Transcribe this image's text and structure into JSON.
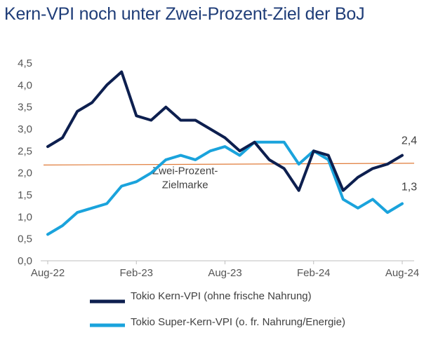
{
  "title": "Kern-VPI noch unter Zwei-Prozent-Ziel der BoJ",
  "chart_data": {
    "type": "line",
    "title": "Kern-VPI noch unter Zwei-Prozent-Ziel der BoJ",
    "x": [
      "2022-08",
      "2022-09",
      "2022-10",
      "2022-11",
      "2022-12",
      "2023-01",
      "2023-02",
      "2023-03",
      "2023-04",
      "2023-05",
      "2023-06",
      "2023-07",
      "2023-08",
      "2023-09",
      "2023-10",
      "2023-11",
      "2023-12",
      "2024-01",
      "2024-02",
      "2024-03",
      "2024-04",
      "2024-05",
      "2024-06",
      "2024-07",
      "2024-08"
    ],
    "x_tick_labels": [
      "Aug-22",
      "Feb-23",
      "Aug-23",
      "Feb-24",
      "Aug-24"
    ],
    "x_tick_positions": [
      "2022-08",
      "2023-02",
      "2023-08",
      "2024-02",
      "2024-08"
    ],
    "ylim": [
      0,
      4.5
    ],
    "y_ticks": [
      "0,0",
      "0,5",
      "1,0",
      "1,5",
      "2,0",
      "2,5",
      "3,0",
      "3,5",
      "4,0",
      "4,5"
    ],
    "y_tick_values": [
      0,
      0.5,
      1.0,
      1.5,
      2.0,
      2.5,
      3.0,
      3.5,
      4.0,
      4.5
    ],
    "grid": false,
    "legend_position": "bottom",
    "series": [
      {
        "name": "Tokio Kern-VPI (ohne frische Nahrung)",
        "color": "#0d1f4f",
        "values": [
          2.6,
          2.8,
          3.4,
          3.6,
          4.0,
          4.3,
          3.3,
          3.2,
          3.5,
          3.2,
          3.2,
          3.0,
          2.8,
          2.5,
          2.7,
          2.3,
          2.1,
          1.6,
          2.5,
          2.4,
          1.6,
          1.9,
          2.1,
          2.2,
          2.4
        ],
        "end_label": "2,4"
      },
      {
        "name": "Tokio Super-Kern-VPI (o. fr. Nahrung/Energie)",
        "color": "#1aa3dc",
        "values": [
          0.6,
          0.8,
          1.1,
          1.2,
          1.3,
          1.7,
          1.8,
          2.0,
          2.3,
          2.4,
          2.3,
          2.5,
          2.6,
          2.4,
          2.7,
          2.7,
          2.7,
          2.2,
          2.5,
          2.3,
          1.4,
          1.2,
          1.4,
          1.1,
          1.3
        ],
        "end_label": "1,3"
      }
    ],
    "reference_line": {
      "label_line1": "Zwei-Prozent-",
      "label_line2": "Zielmarke",
      "y_start": 2.18,
      "y_end": 2.22,
      "color": "#e07b39"
    }
  }
}
